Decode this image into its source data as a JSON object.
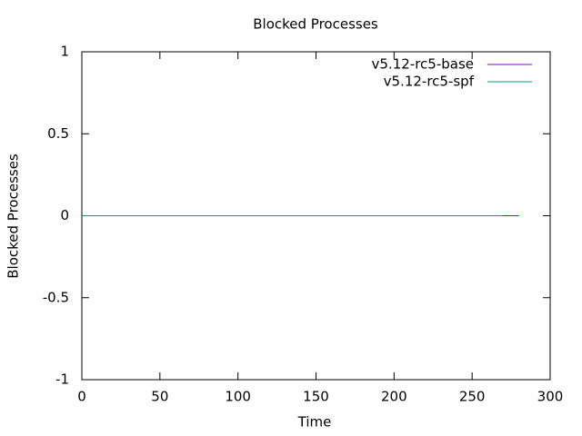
{
  "chart_data": {
    "type": "line",
    "title": "Blocked Processes",
    "xlabel": "Time",
    "ylabel": "Blocked Processes",
    "series": [
      {
        "name": "v5.12-rc5-base",
        "color": "#9400d3",
        "x": [
          0,
          280
        ],
        "values": [
          0,
          0
        ]
      },
      {
        "name": "v5.12-rc5-spf",
        "color": "#009e73",
        "x": [
          0,
          270
        ],
        "values": [
          0,
          0
        ]
      }
    ],
    "xlim": [
      0,
      300
    ],
    "xticks": [
      0,
      50,
      100,
      150,
      200,
      250,
      300
    ],
    "ylim": [
      -1,
      1
    ],
    "yticks": [
      -1,
      -0.5,
      0,
      0.5,
      1
    ],
    "legend": "top-right"
  }
}
